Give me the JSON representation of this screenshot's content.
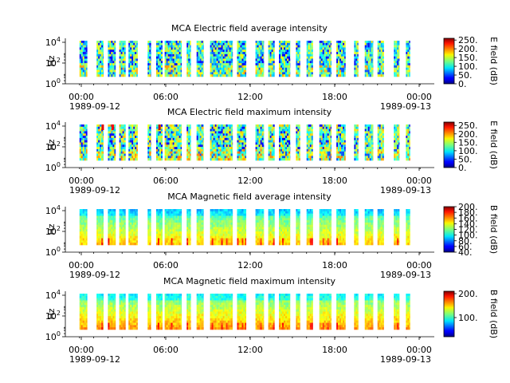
{
  "figure": {
    "background": "#ffffff",
    "time_ticks": [
      {
        "time": "00:00",
        "date": "1989-09-12"
      },
      {
        "time": "06:00",
        "date": ""
      },
      {
        "time": "12:00",
        "date": ""
      },
      {
        "time": "18:00",
        "date": ""
      },
      {
        "time": "00:00",
        "date": "1989-09-13"
      }
    ],
    "y_axis": {
      "label": "Hz",
      "scale": "log",
      "tick_base": "10",
      "tick_exponents": [
        "0",
        "2",
        "4"
      ]
    },
    "colormap": "jet"
  },
  "chart_data": [
    {
      "type": "heatmap",
      "title": "MCA  Electric field average intensity",
      "ylabel": "Hz",
      "xrange_hours": [
        -1,
        25
      ],
      "colorbar": {
        "label": "E field (dB)",
        "ticks": [
          "0.",
          "50.",
          "100.",
          "150.",
          "200.",
          "250."
        ],
        "range": [
          0,
          260
        ]
      },
      "base_level": 0.55,
      "data_segments_hours": [
        [
          0.0,
          0.55
        ],
        [
          1.2,
          1.7
        ],
        [
          2.0,
          2.55
        ],
        [
          2.8,
          3.25
        ],
        [
          3.45,
          4.1
        ],
        [
          4.8,
          5.05
        ],
        [
          5.4,
          5.85
        ],
        [
          6.0,
          7.2
        ],
        [
          7.55,
          7.85
        ],
        [
          8.25,
          8.75
        ],
        [
          9.2,
          10.8
        ],
        [
          11.1,
          11.75
        ],
        [
          12.4,
          13.0
        ],
        [
          13.3,
          13.75
        ],
        [
          14.05,
          14.85
        ],
        [
          15.25,
          15.55
        ],
        [
          16.0,
          16.45
        ],
        [
          16.9,
          17.75
        ],
        [
          18.1,
          18.75
        ],
        [
          19.35,
          19.65
        ],
        [
          20.1,
          20.7
        ],
        [
          21.0,
          21.45
        ],
        [
          22.15,
          22.55
        ],
        [
          23.0,
          23.3
        ]
      ]
    },
    {
      "type": "heatmap",
      "title": "MCA  Electric field maximum intensity",
      "ylabel": "Hz",
      "xrange_hours": [
        -1,
        25
      ],
      "colorbar": {
        "label": "E field (dB)",
        "ticks": [
          "0.",
          "50.",
          "100.",
          "150.",
          "200.",
          "250."
        ],
        "range": [
          0,
          270
        ]
      },
      "base_level": 0.6,
      "data_segments_hours": [
        [
          0.0,
          0.55
        ],
        [
          1.2,
          1.7
        ],
        [
          2.0,
          2.55
        ],
        [
          2.8,
          3.25
        ],
        [
          3.45,
          4.1
        ],
        [
          4.8,
          5.05
        ],
        [
          5.4,
          5.85
        ],
        [
          6.0,
          7.2
        ],
        [
          7.55,
          7.85
        ],
        [
          8.25,
          8.75
        ],
        [
          9.2,
          10.8
        ],
        [
          11.1,
          11.75
        ],
        [
          12.4,
          13.0
        ],
        [
          13.3,
          13.75
        ],
        [
          14.05,
          14.85
        ],
        [
          15.25,
          15.55
        ],
        [
          16.0,
          16.45
        ],
        [
          16.9,
          17.75
        ],
        [
          18.1,
          18.75
        ],
        [
          19.35,
          19.65
        ],
        [
          20.1,
          20.7
        ],
        [
          21.0,
          21.45
        ],
        [
          22.15,
          22.55
        ],
        [
          23.0,
          23.3
        ]
      ]
    },
    {
      "type": "heatmap",
      "title": "MCA  Magnetic field average intensity",
      "ylabel": "Hz",
      "xrange_hours": [
        -1,
        25
      ],
      "colorbar": {
        "label": "B field (dB)",
        "ticks": [
          "40.",
          "60.",
          "80.",
          "100.",
          "120.",
          "140.",
          "160.",
          "180.",
          "200."
        ],
        "range": [
          40,
          200
        ]
      },
      "base_level": 0.45,
      "data_segments_hours": [
        [
          0.0,
          0.55
        ],
        [
          1.2,
          1.7
        ],
        [
          2.0,
          2.55
        ],
        [
          2.8,
          3.25
        ],
        [
          3.45,
          4.1
        ],
        [
          4.8,
          5.05
        ],
        [
          5.4,
          5.85
        ],
        [
          6.0,
          7.2
        ],
        [
          7.55,
          7.85
        ],
        [
          8.25,
          8.75
        ],
        [
          9.2,
          10.8
        ],
        [
          11.1,
          11.75
        ],
        [
          12.4,
          13.0
        ],
        [
          13.3,
          13.75
        ],
        [
          14.05,
          14.85
        ],
        [
          15.25,
          15.55
        ],
        [
          16.0,
          16.45
        ],
        [
          16.9,
          17.75
        ],
        [
          18.1,
          18.75
        ],
        [
          19.35,
          19.65
        ],
        [
          20.1,
          20.7
        ],
        [
          21.0,
          21.45
        ],
        [
          22.15,
          22.55
        ],
        [
          23.0,
          23.3
        ]
      ]
    },
    {
      "type": "heatmap",
      "title": "MCA  Magnetic field maximum intensity",
      "ylabel": "Hz",
      "xrange_hours": [
        -1,
        25
      ],
      "colorbar": {
        "label": "B field (dB)",
        "ticks": [
          "100.",
          "200."
        ],
        "range": [
          20,
          210
        ]
      },
      "base_level": 0.5,
      "data_segments_hours": [
        [
          0.0,
          0.55
        ],
        [
          1.2,
          1.7
        ],
        [
          2.0,
          2.55
        ],
        [
          2.8,
          3.25
        ],
        [
          3.45,
          4.1
        ],
        [
          4.8,
          5.05
        ],
        [
          5.4,
          5.85
        ],
        [
          6.0,
          7.2
        ],
        [
          7.55,
          7.85
        ],
        [
          8.25,
          8.75
        ],
        [
          9.2,
          10.8
        ],
        [
          11.1,
          11.75
        ],
        [
          12.4,
          13.0
        ],
        [
          13.3,
          13.75
        ],
        [
          14.05,
          14.85
        ],
        [
          15.25,
          15.55
        ],
        [
          16.0,
          16.45
        ],
        [
          16.9,
          17.75
        ],
        [
          18.1,
          18.75
        ],
        [
          19.35,
          19.65
        ],
        [
          20.1,
          20.7
        ],
        [
          21.0,
          21.45
        ],
        [
          22.15,
          22.55
        ],
        [
          23.0,
          23.3
        ]
      ]
    }
  ]
}
